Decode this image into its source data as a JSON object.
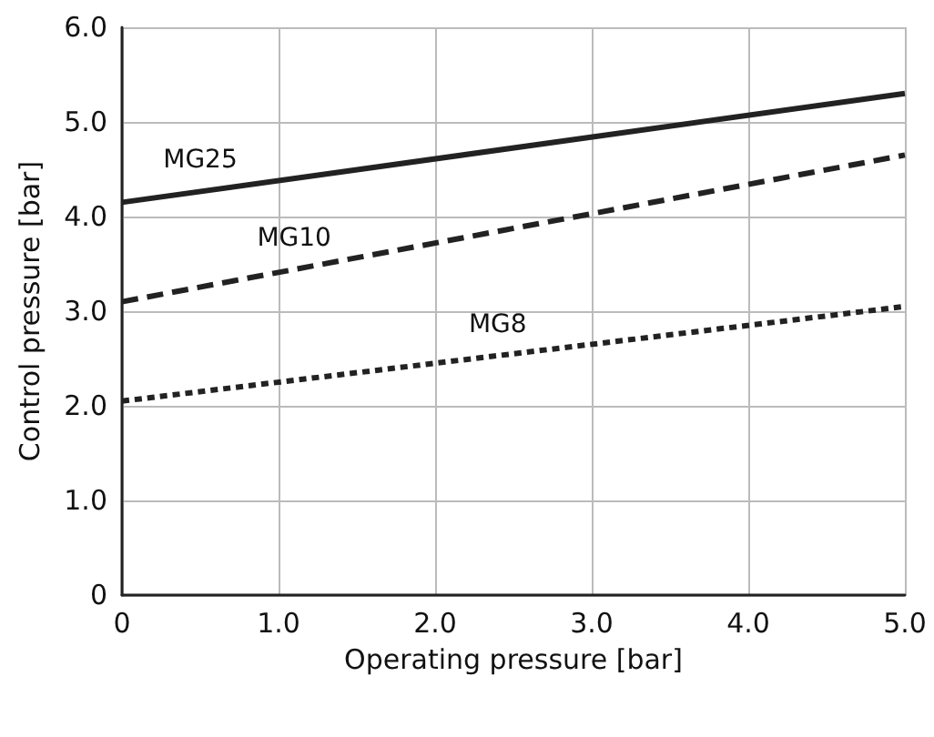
{
  "chart_data": {
    "type": "line",
    "xlabel": "Operating pressure [bar]",
    "ylabel": "Control pressure [bar]",
    "x": [
      0,
      5
    ],
    "series": [
      {
        "name": "MG25",
        "color": "#222222",
        "values": [
          4.15,
          5.3
        ],
        "line_style": "solid"
      },
      {
        "name": "MG10",
        "color": "#222222",
        "values": [
          3.1,
          4.65
        ],
        "line_style": "dashed"
      },
      {
        "name": "MG8",
        "color": "#222222",
        "values": [
          2.05,
          3.05
        ],
        "line_style": "dotted"
      }
    ],
    "xlim": [
      0,
      5
    ],
    "xticks": [
      {
        "value": 0,
        "label": "0"
      },
      {
        "value": 1,
        "label": "1.0"
      },
      {
        "value": 2,
        "label": "2.0"
      },
      {
        "value": 3,
        "label": "3.0"
      },
      {
        "value": 4,
        "label": "4.0"
      },
      {
        "value": 5,
        "label": "5.0"
      }
    ],
    "ylim": [
      0,
      6
    ],
    "yticks": [
      {
        "value": 0,
        "label": "0"
      },
      {
        "value": 1,
        "label": "1.0"
      },
      {
        "value": 2,
        "label": "2.0"
      },
      {
        "value": 3,
        "label": "3.0"
      },
      {
        "value": 4,
        "label": "4.0"
      },
      {
        "value": 5,
        "label": "5.0"
      },
      {
        "value": 6,
        "label": "6.0"
      }
    ],
    "grid": true,
    "marker": "none"
  }
}
